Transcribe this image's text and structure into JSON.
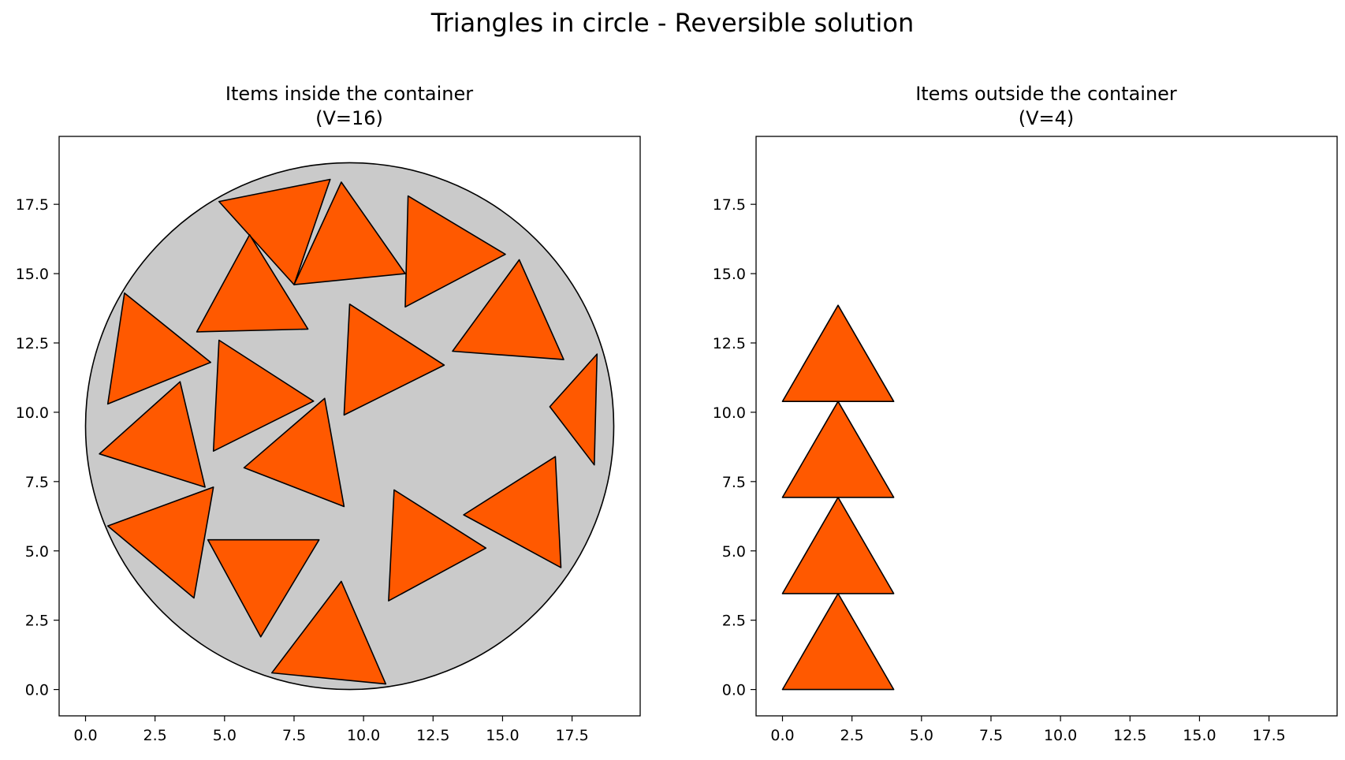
{
  "figure": {
    "title": "Triangles in circle - Reversible solution"
  },
  "colors": {
    "triangle_fill": "#ff5900",
    "circle_fill": "#cacaca",
    "edge": "#000000"
  },
  "chart_data": [
    {
      "type": "polygon-plot",
      "title": "Items inside the container",
      "subtitle": "(V=16)",
      "xlim": [
        -0.95,
        19.95
      ],
      "ylim": [
        -0.95,
        19.95
      ],
      "xticks": [
        0.0,
        2.5,
        5.0,
        7.5,
        10.0,
        12.5,
        15.0,
        17.5
      ],
      "yticks": [
        0.0,
        2.5,
        5.0,
        7.5,
        10.0,
        12.5,
        15.0,
        17.5
      ],
      "xtick_labels": [
        "0.0",
        "2.5",
        "5.0",
        "7.5",
        "10.0",
        "12.5",
        "15.0",
        "17.5"
      ],
      "ytick_labels": [
        "0.0",
        "2.5",
        "5.0",
        "7.5",
        "10.0",
        "12.5",
        "15.0",
        "17.5"
      ],
      "container": {
        "shape": "circle",
        "center": [
          9.5,
          9.5
        ],
        "radius": 9.5
      },
      "items": [
        [
          [
            4.8,
            17.6
          ],
          [
            8.8,
            18.4
          ],
          [
            7.5,
            14.6
          ]
        ],
        [
          [
            9.2,
            18.3
          ],
          [
            7.5,
            14.6
          ],
          [
            11.5,
            15.0
          ]
        ],
        [
          [
            11.6,
            17.8
          ],
          [
            15.1,
            15.7
          ],
          [
            11.5,
            13.8
          ]
        ],
        [
          [
            5.9,
            16.4
          ],
          [
            4.0,
            12.9
          ],
          [
            8.0,
            13.0
          ]
        ],
        [
          [
            1.4,
            14.3
          ],
          [
            4.5,
            11.8
          ],
          [
            0.8,
            10.3
          ]
        ],
        [
          [
            15.6,
            15.5
          ],
          [
            13.2,
            12.2
          ],
          [
            17.2,
            11.9
          ]
        ],
        [
          [
            9.5,
            13.9
          ],
          [
            12.9,
            11.7
          ],
          [
            9.3,
            9.9
          ]
        ],
        [
          [
            4.8,
            12.6
          ],
          [
            8.2,
            10.4
          ],
          [
            4.6,
            8.6
          ]
        ],
        [
          [
            18.4,
            12.1
          ],
          [
            16.7,
            10.2
          ],
          [
            18.3,
            8.1
          ]
        ],
        [
          [
            3.4,
            11.1
          ],
          [
            0.5,
            8.5
          ],
          [
            4.3,
            7.3
          ]
        ],
        [
          [
            8.6,
            10.5
          ],
          [
            5.7,
            8.0
          ],
          [
            9.3,
            6.6
          ]
        ],
        [
          [
            4.6,
            7.3
          ],
          [
            0.8,
            5.9
          ],
          [
            3.9,
            3.3
          ]
        ],
        [
          [
            16.9,
            8.4
          ],
          [
            17.1,
            4.4
          ],
          [
            13.6,
            6.3
          ]
        ],
        [
          [
            11.1,
            7.2
          ],
          [
            14.4,
            5.1
          ],
          [
            10.9,
            3.2
          ]
        ],
        [
          [
            4.4,
            5.4
          ],
          [
            8.4,
            5.4
          ],
          [
            6.3,
            1.9
          ]
        ],
        [
          [
            9.2,
            3.9
          ],
          [
            6.7,
            0.6
          ],
          [
            10.8,
            0.2
          ]
        ]
      ]
    },
    {
      "type": "polygon-plot",
      "title": "Items outside the container",
      "subtitle": "(V=4)",
      "xlim": [
        -0.95,
        19.95
      ],
      "ylim": [
        -0.95,
        19.95
      ],
      "xticks": [
        0.0,
        2.5,
        5.0,
        7.5,
        10.0,
        12.5,
        15.0,
        17.5
      ],
      "yticks": [
        0.0,
        2.5,
        5.0,
        7.5,
        10.0,
        12.5,
        15.0,
        17.5
      ],
      "xtick_labels": [
        "0.0",
        "2.5",
        "5.0",
        "7.5",
        "10.0",
        "12.5",
        "15.0",
        "17.5"
      ],
      "ytick_labels": [
        "0.0",
        "2.5",
        "5.0",
        "7.5",
        "10.0",
        "12.5",
        "15.0",
        "17.5"
      ],
      "items": [
        [
          [
            0.0,
            0.0
          ],
          [
            4.0,
            0.0
          ],
          [
            2.0,
            3.46
          ]
        ],
        [
          [
            0.0,
            3.46
          ],
          [
            4.0,
            3.46
          ],
          [
            2.0,
            6.93
          ]
        ],
        [
          [
            0.0,
            6.93
          ],
          [
            4.0,
            6.93
          ],
          [
            2.0,
            10.39
          ]
        ],
        [
          [
            0.0,
            10.39
          ],
          [
            4.0,
            10.39
          ],
          [
            2.0,
            13.86
          ]
        ]
      ]
    }
  ]
}
